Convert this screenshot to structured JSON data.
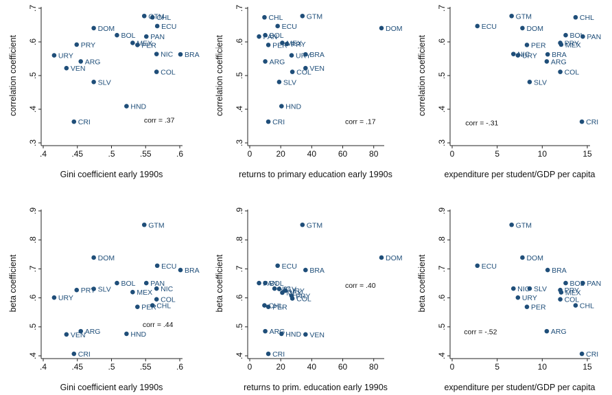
{
  "style": {
    "point_color": "#1f4e79",
    "label_color": "#1f4e79",
    "axis_color": "#222222"
  },
  "chart_data": [
    {
      "type": "scatter",
      "xlabel": "Gini coefficient early 1990s",
      "ylabel": "correlation coefficient",
      "xlim": [
        0.4,
        0.6
      ],
      "ylim": [
        0.3,
        0.7
      ],
      "xticks": [
        0.4,
        0.45,
        0.5,
        0.55,
        0.6
      ],
      "xtick_labels": [
        ".4",
        ".45",
        ".5",
        ".55",
        ".6"
      ],
      "yticks": [
        0.3,
        0.4,
        0.5,
        0.6,
        0.7
      ],
      "ytick_labels": [
        ".3",
        ".4",
        ".5",
        ".6",
        ".7"
      ],
      "annotation": "corr = .37",
      "points": [
        {
          "label": "GTM",
          "x": 0.548,
          "y": 0.677
        },
        {
          "label": "CHL",
          "x": 0.56,
          "y": 0.673
        },
        {
          "label": "ECU",
          "x": 0.567,
          "y": 0.647
        },
        {
          "label": "DOM",
          "x": 0.474,
          "y": 0.641
        },
        {
          "label": "BOL",
          "x": 0.508,
          "y": 0.62
        },
        {
          "label": "PAN",
          "x": 0.551,
          "y": 0.616
        },
        {
          "label": "MEX",
          "x": 0.531,
          "y": 0.597
        },
        {
          "label": "PER",
          "x": 0.538,
          "y": 0.591
        },
        {
          "label": "PRY",
          "x": 0.449,
          "y": 0.592
        },
        {
          "label": "URY",
          "x": 0.416,
          "y": 0.56
        },
        {
          "label": "NIC",
          "x": 0.566,
          "y": 0.564
        },
        {
          "label": "BRA",
          "x": 0.601,
          "y": 0.563
        },
        {
          "label": "ARG",
          "x": 0.455,
          "y": 0.542
        },
        {
          "label": "VEN",
          "x": 0.434,
          "y": 0.522
        },
        {
          "label": "COL",
          "x": 0.566,
          "y": 0.511
        },
        {
          "label": "SLV",
          "x": 0.474,
          "y": 0.481
        },
        {
          "label": "HND",
          "x": 0.522,
          "y": 0.409
        },
        {
          "label": "CRI",
          "x": 0.445,
          "y": 0.363
        }
      ]
    },
    {
      "type": "scatter",
      "xlabel": "returns to primary education early 1990s",
      "ylabel": "correlation coefficient",
      "xlim": [
        0,
        85
      ],
      "ylim": [
        0.3,
        0.7
      ],
      "xticks": [
        0,
        20,
        40,
        60,
        80
      ],
      "xtick_labels": [
        "0",
        "20",
        "40",
        "60",
        "80"
      ],
      "yticks": [
        0.3,
        0.4,
        0.5,
        0.6,
        0.7
      ],
      "ytick_labels": [
        ".3",
        ".4",
        ".5",
        ".6",
        ".7"
      ],
      "annotation": "corr = .17",
      "points": [
        {
          "label": "CHL",
          "x": 9.5,
          "y": 0.673
        },
        {
          "label": "GTM",
          "x": 34,
          "y": 0.677
        },
        {
          "label": "ECU",
          "x": 18,
          "y": 0.647
        },
        {
          "label": "DOM",
          "x": 85,
          "y": 0.641
        },
        {
          "label": "PAN",
          "x": 6,
          "y": 0.616
        },
        {
          "label": "BOL",
          "x": 10,
          "y": 0.62
        },
        {
          "label": "MEX",
          "x": 21,
          "y": 0.597
        },
        {
          "label": "PER",
          "x": 12,
          "y": 0.591
        },
        {
          "label": "PRY",
          "x": 24,
          "y": 0.594
        },
        {
          "label": "URY",
          "x": 27,
          "y": 0.56
        },
        {
          "label": "BRA",
          "x": 36,
          "y": 0.563
        },
        {
          "label": "ARG",
          "x": 10,
          "y": 0.542
        },
        {
          "label": "VEN",
          "x": 36,
          "y": 0.522
        },
        {
          "label": "COL",
          "x": 27.5,
          "y": 0.511
        },
        {
          "label": "SLV",
          "x": 19,
          "y": 0.481
        },
        {
          "label": "HND",
          "x": 20.5,
          "y": 0.409
        },
        {
          "label": "CRI",
          "x": 12,
          "y": 0.363
        }
      ]
    },
    {
      "type": "scatter",
      "xlabel": "expenditure per student/GDP per capita",
      "ylabel": "correlation coefficient",
      "xlim": [
        0,
        15
      ],
      "ylim": [
        0.3,
        0.7
      ],
      "xticks": [
        0,
        5,
        10,
        15
      ],
      "xtick_labels": [
        "0",
        "5",
        "10",
        "15"
      ],
      "yticks": [
        0.3,
        0.4,
        0.5,
        0.6,
        0.7
      ],
      "ytick_labels": [
        ".3",
        ".4",
        ".5",
        ".6",
        ".7"
      ],
      "annotation": "corr = -.31",
      "points": [
        {
          "label": "GTM",
          "x": 6.6,
          "y": 0.677
        },
        {
          "label": "CHL",
          "x": 13.7,
          "y": 0.673
        },
        {
          "label": "ECU",
          "x": 2.8,
          "y": 0.647
        },
        {
          "label": "DOM",
          "x": 7.8,
          "y": 0.641
        },
        {
          "label": "BOL",
          "x": 12.6,
          "y": 0.62
        },
        {
          "label": "PAN",
          "x": 14.5,
          "y": 0.616
        },
        {
          "label": "PER",
          "x": 8.3,
          "y": 0.591
        },
        {
          "label": "PRY",
          "x": 12,
          "y": 0.597
        },
        {
          "label": "MEX",
          "x": 12.1,
          "y": 0.592
        },
        {
          "label": "NIC",
          "x": 6.8,
          "y": 0.564
        },
        {
          "label": "URY",
          "x": 7.3,
          "y": 0.56
        },
        {
          "label": "BRA",
          "x": 10.6,
          "y": 0.563
        },
        {
          "label": "ARG",
          "x": 10.5,
          "y": 0.542
        },
        {
          "label": "COL",
          "x": 12,
          "y": 0.511
        },
        {
          "label": "SLV",
          "x": 8.6,
          "y": 0.481
        },
        {
          "label": "CRI",
          "x": 14.4,
          "y": 0.363
        }
      ]
    },
    {
      "type": "scatter",
      "xlabel": "Gini coefficient early 1990s",
      "ylabel": "beta coefficient",
      "xlim": [
        0.4,
        0.6
      ],
      "ylim": [
        0.4,
        0.9
      ],
      "xticks": [
        0.4,
        0.45,
        0.5,
        0.55,
        0.6
      ],
      "xtick_labels": [
        ".4",
        ".45",
        ".5",
        ".55",
        ".6"
      ],
      "yticks": [
        0.4,
        0.5,
        0.6,
        0.7,
        0.8,
        0.9
      ],
      "ytick_labels": [
        ".4",
        ".5",
        ".6",
        ".7",
        ".8",
        ".9"
      ],
      "annotation": "corr = .44",
      "points": [
        {
          "label": "GTM",
          "x": 0.548,
          "y": 0.852
        },
        {
          "label": "DOM",
          "x": 0.474,
          "y": 0.739
        },
        {
          "label": "ECU",
          "x": 0.567,
          "y": 0.711
        },
        {
          "label": "BRA",
          "x": 0.601,
          "y": 0.696
        },
        {
          "label": "BOL",
          "x": 0.508,
          "y": 0.651
        },
        {
          "label": "PAN",
          "x": 0.551,
          "y": 0.651
        },
        {
          "label": "PRY",
          "x": 0.449,
          "y": 0.627
        },
        {
          "label": "SLV",
          "x": 0.474,
          "y": 0.631
        },
        {
          "label": "NIC",
          "x": 0.566,
          "y": 0.632
        },
        {
          "label": "MEX",
          "x": 0.531,
          "y": 0.62
        },
        {
          "label": "URY",
          "x": 0.416,
          "y": 0.601
        },
        {
          "label": "COL",
          "x": 0.566,
          "y": 0.595
        },
        {
          "label": "CHL",
          "x": 0.56,
          "y": 0.574
        },
        {
          "label": "PER",
          "x": 0.538,
          "y": 0.569
        },
        {
          "label": "ARG",
          "x": 0.455,
          "y": 0.485
        },
        {
          "label": "VEN",
          "x": 0.434,
          "y": 0.474
        },
        {
          "label": "HND",
          "x": 0.522,
          "y": 0.476
        },
        {
          "label": "CRI",
          "x": 0.445,
          "y": 0.407
        }
      ]
    },
    {
      "type": "scatter",
      "xlabel": "returns to prim. education early 1990s",
      "ylabel": "beta coefficient",
      "xlim": [
        0,
        85
      ],
      "ylim": [
        0.4,
        0.9
      ],
      "xticks": [
        0,
        20,
        40,
        60,
        80
      ],
      "xtick_labels": [
        "0",
        "20",
        "40",
        "60",
        "80"
      ],
      "yticks": [
        0.4,
        0.5,
        0.6,
        0.7,
        0.8,
        0.9
      ],
      "ytick_labels": [
        ".4",
        ".5",
        ".6",
        ".7",
        ".8",
        ".9"
      ],
      "annotation": "corr = .40",
      "points": [
        {
          "label": "GTM",
          "x": 34,
          "y": 0.852
        },
        {
          "label": "DOM",
          "x": 85,
          "y": 0.739
        },
        {
          "label": "ECU",
          "x": 18,
          "y": 0.711
        },
        {
          "label": "BRA",
          "x": 36,
          "y": 0.696
        },
        {
          "label": "PAN",
          "x": 6,
          "y": 0.651
        },
        {
          "label": "BOL",
          "x": 10,
          "y": 0.651
        },
        {
          "label": "NIC",
          "x": 16,
          "y": 0.632
        },
        {
          "label": "SLV",
          "x": 19,
          "y": 0.631
        },
        {
          "label": "URY",
          "x": 23,
          "y": 0.625
        },
        {
          "label": "MEX",
          "x": 21,
          "y": 0.618
        },
        {
          "label": "PRY",
          "x": 27,
          "y": 0.607
        },
        {
          "label": "COL",
          "x": 27.5,
          "y": 0.598
        },
        {
          "label": "CHL",
          "x": 9.5,
          "y": 0.574
        },
        {
          "label": "PER",
          "x": 12,
          "y": 0.569
        },
        {
          "label": "ARG",
          "x": 10,
          "y": 0.485
        },
        {
          "label": "HND",
          "x": 20.5,
          "y": 0.476
        },
        {
          "label": "VEN",
          "x": 36,
          "y": 0.474
        },
        {
          "label": "CRI",
          "x": 12,
          "y": 0.407
        }
      ]
    },
    {
      "type": "scatter",
      "xlabel": "expenditure per student/GDP per capita",
      "ylabel": "beta coefficient",
      "xlim": [
        0,
        15
      ],
      "ylim": [
        0.4,
        0.9
      ],
      "xticks": [
        0,
        5,
        10,
        15
      ],
      "xtick_labels": [
        "0",
        "5",
        "10",
        "15"
      ],
      "yticks": [
        0.4,
        0.5,
        0.6,
        0.7,
        0.8,
        0.9
      ],
      "ytick_labels": [
        ".4",
        ".5",
        ".6",
        ".7",
        ".8",
        ".9"
      ],
      "annotation": "corr = -.52",
      "points": [
        {
          "label": "GTM",
          "x": 6.6,
          "y": 0.852
        },
        {
          "label": "DOM",
          "x": 7.8,
          "y": 0.739
        },
        {
          "label": "ECU",
          "x": 2.8,
          "y": 0.711
        },
        {
          "label": "BRA",
          "x": 10.6,
          "y": 0.696
        },
        {
          "label": "BOL",
          "x": 12.6,
          "y": 0.651
        },
        {
          "label": "PAN",
          "x": 14.5,
          "y": 0.651
        },
        {
          "label": "NIC",
          "x": 6.8,
          "y": 0.632
        },
        {
          "label": "SLV",
          "x": 8.6,
          "y": 0.632
        },
        {
          "label": "PRY",
          "x": 12,
          "y": 0.627
        },
        {
          "label": "MEX",
          "x": 12.1,
          "y": 0.619
        },
        {
          "label": "URY",
          "x": 7.3,
          "y": 0.601
        },
        {
          "label": "COL",
          "x": 12,
          "y": 0.595
        },
        {
          "label": "CHL",
          "x": 13.7,
          "y": 0.574
        },
        {
          "label": "PER",
          "x": 8.3,
          "y": 0.569
        },
        {
          "label": "ARG",
          "x": 10.5,
          "y": 0.485
        },
        {
          "label": "CRI",
          "x": 14.4,
          "y": 0.407
        }
      ]
    }
  ]
}
